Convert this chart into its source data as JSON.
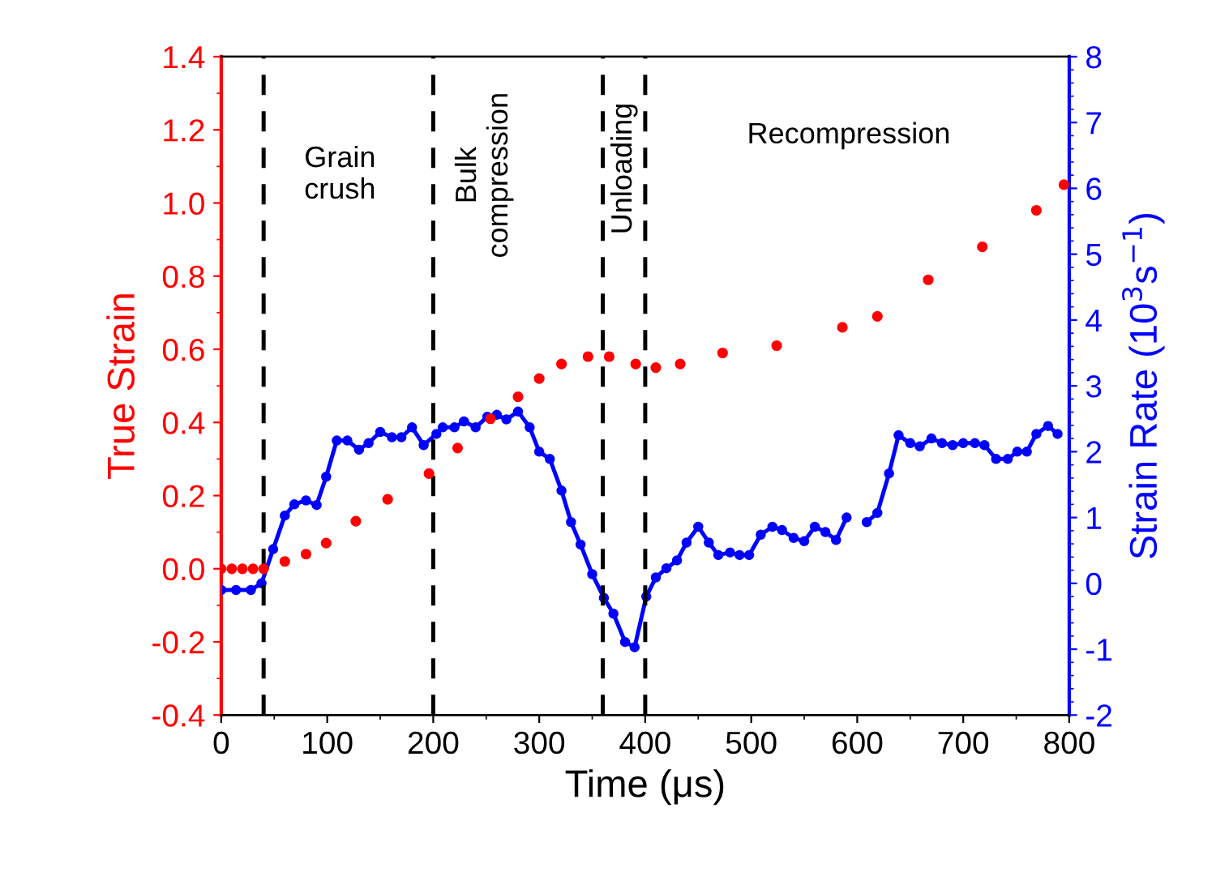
{
  "chart_data": {
    "type": "line",
    "xlabel": "Time (μs)",
    "ylabel": "True Strain",
    "y2label": "Strain Rate (10$^{3}$s$^{−1}$)",
    "xlim": [
      0,
      800
    ],
    "xticks": [
      0,
      100,
      200,
      300,
      400,
      500,
      600,
      700,
      800
    ],
    "ylim": [
      -0.4,
      1.4
    ],
    "yticks": [
      {
        "value": -0.4,
        "label": "-0.4"
      },
      {
        "value": -0.2,
        "label": "-0.2"
      },
      {
        "value": 0,
        "label": "0.0"
      },
      0.2,
      0.4,
      0.6,
      0.8,
      {
        "value": 1,
        "label": "1.0"
      },
      1.2,
      1.4
    ],
    "y2lim": [
      -2,
      8
    ],
    "y2ticks": [
      -2,
      -1,
      0,
      1,
      2,
      3,
      4,
      5,
      6,
      7,
      8
    ],
    "grid": false,
    "legend": false,
    "series": [
      {
        "type": "scatter",
        "axis": "y",
        "color": "#ff0000",
        "marker": "circle",
        "x": [
          0,
          10,
          20,
          30,
          40,
          60,
          80,
          99,
          127,
          157,
          196,
          223,
          254,
          280,
          300,
          321,
          346,
          366,
          391,
          410,
          433,
          473,
          524,
          586,
          619,
          667,
          718,
          769,
          795
        ],
        "values": [
          0,
          0,
          0,
          0,
          0,
          0.02,
          0.04,
          0.07,
          0.13,
          0.19,
          0.26,
          0.33,
          0.41,
          0.47,
          0.52,
          0.56,
          0.58,
          0.58,
          0.56,
          0.55,
          0.56,
          0.59,
          0.61,
          0.66,
          0.69,
          0.79,
          0.88,
          0.98,
          1.05
        ]
      },
      {
        "axis": "y2",
        "color": "#0000ff",
        "marker": "circle",
        "line_style": "solid",
        "x": [
          0,
          14,
          28,
          38,
          49,
          60,
          69,
          80,
          90,
          99,
          109,
          119,
          130,
          139,
          150,
          161,
          170,
          180,
          191,
          203,
          209,
          220,
          229,
          240,
          251,
          260,
          269,
          280,
          291,
          300,
          310,
          321,
          330,
          339,
          350,
          361,
          370,
          381,
          390,
          401,
          410,
          420,
          430,
          439,
          450,
          460,
          469,
          480,
          489,
          498,
          509,
          520,
          529,
          540,
          550,
          560,
          570,
          580,
          590,
          600,
          609,
          619,
          630,
          639,
          650,
          659,
          670,
          680,
          690,
          700,
          711,
          720,
          731,
          742,
          751,
          760,
          769,
          780,
          789
        ],
        "values": [
          -0.1,
          -0.1,
          -0.1,
          0.0,
          0.52,
          1.03,
          1.2,
          1.26,
          1.19,
          1.62,
          2.17,
          2.17,
          2.03,
          2.13,
          2.3,
          2.22,
          2.22,
          2.37,
          2.1,
          2.27,
          2.37,
          2.37,
          2.46,
          2.37,
          2.53,
          2.56,
          2.49,
          2.61,
          2.37,
          2.0,
          1.89,
          1.41,
          0.93,
          0.59,
          0.14,
          -0.22,
          -0.46,
          -0.89,
          -0.97,
          -0.2,
          0.09,
          0.23,
          0.35,
          0.62,
          0.86,
          0.62,
          0.43,
          0.47,
          0.43,
          0.43,
          0.74,
          0.86,
          0.81,
          0.69,
          0.64,
          0.86,
          0.78,
          0.66,
          1.0,
          null,
          0.93,
          1.07,
          1.67,
          2.25,
          2.13,
          2.08,
          2.2,
          2.13,
          2.1,
          2.13,
          2.13,
          2.1,
          1.89,
          1.89,
          2.0,
          2.0,
          2.27,
          2.39,
          2.27
        ]
      }
    ],
    "ref_lines": [
      {
        "axis": "x",
        "value": 40,
        "color": "#000000",
        "line_style": "dashed"
      },
      {
        "axis": "x",
        "value": 200,
        "color": "#000000",
        "line_style": "dashed"
      },
      {
        "axis": "x",
        "value": 360,
        "color": "#000000",
        "line_style": "dashed"
      },
      {
        "axis": "x",
        "value": 400,
        "color": "#000000",
        "line_style": "dashed"
      }
    ],
    "annotations": [
      "Grain\ncrush",
      "Bulk\ncompression",
      "Unloading",
      "Recompression"
    ]
  }
}
